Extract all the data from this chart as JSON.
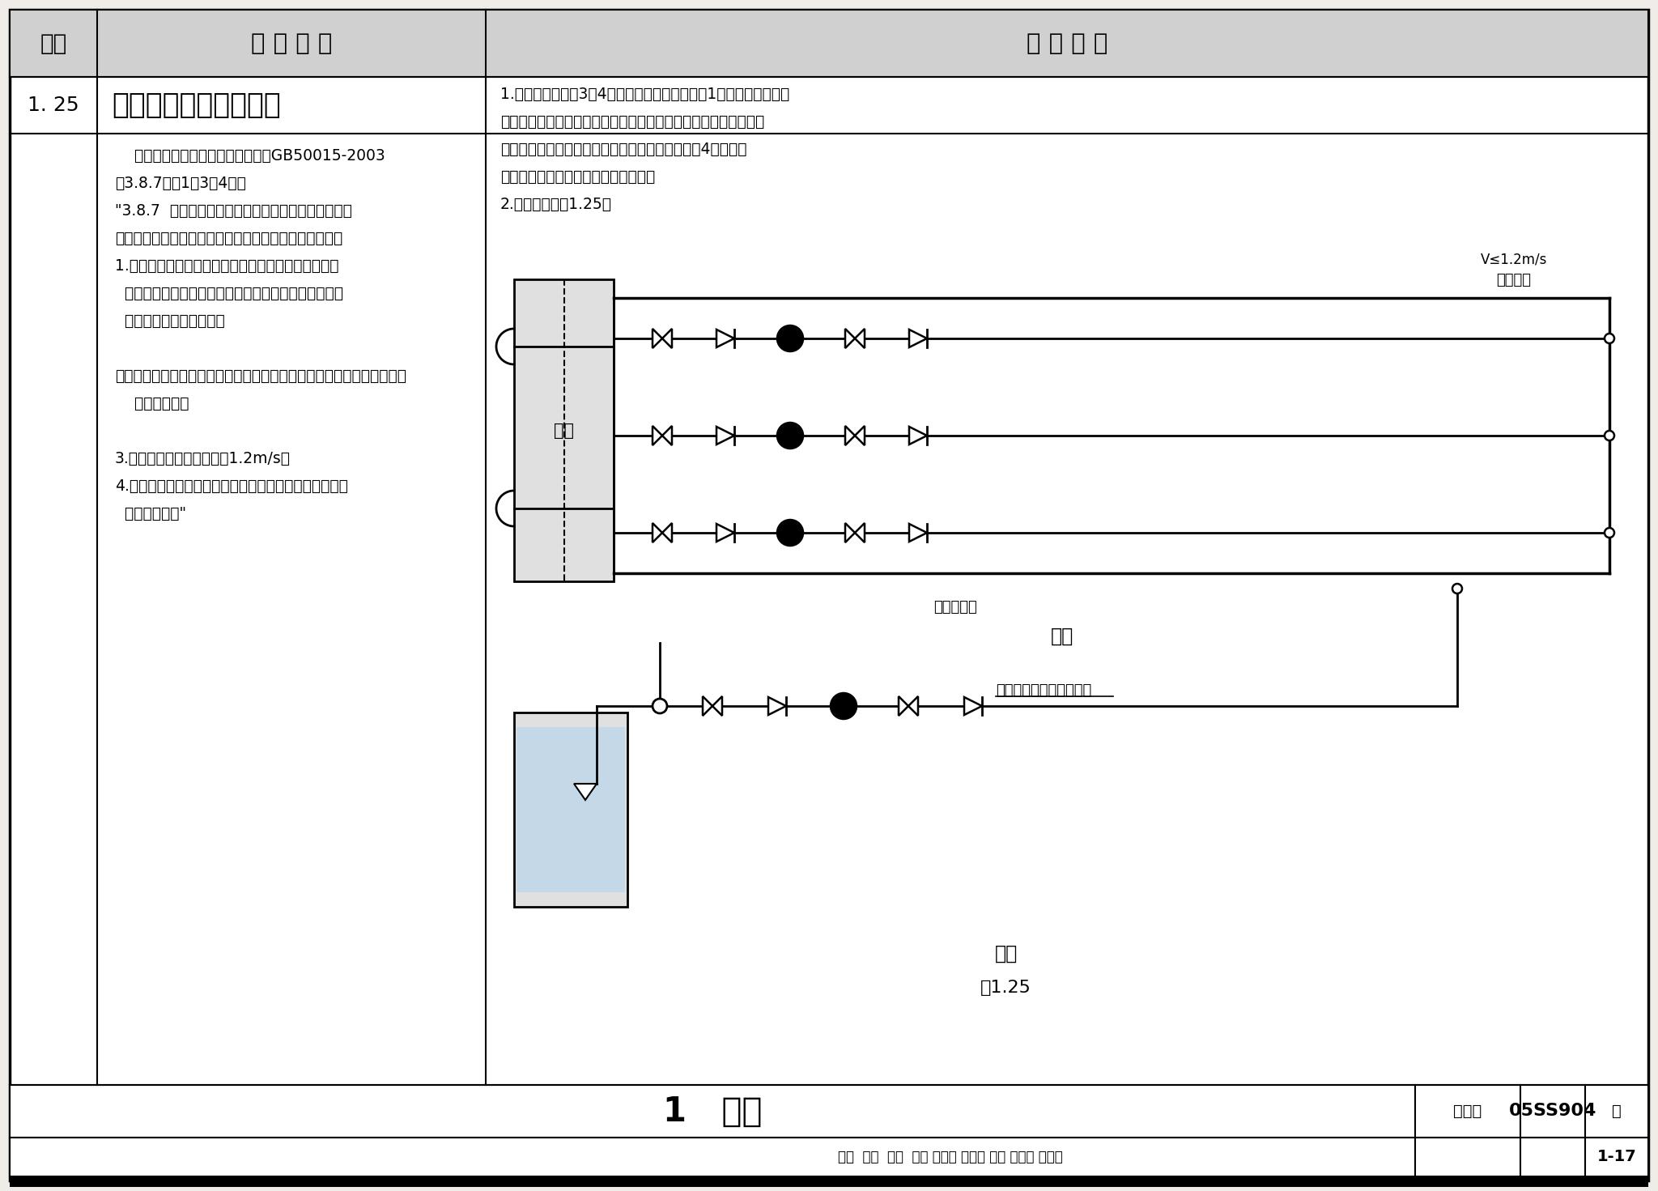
{
  "bg_color": "#f0ede8",
  "border_color": "#000000",
  "header_bg": "#d0d0d0",
  "col1_header": "序号",
  "col2_header": "常 见 问 题",
  "col3_header": "改 进 措 施",
  "row_num": "1. 25",
  "row_title": "水泵吸水总管设计不当",
  "left_text": [
    "    违反了《建筑给水排水设计规范》GB50015-2003",
    "第3.8.7条第1、3、4款。",
    "\"3.8.7  当每台水泵单独从水池吸水有困难时，可采用",
    "单独从吸水总管上自灌吸水，吸水总管应符合下列规定：",
    "1.吸水总管伸入水池的引水管不宜少于两条，当一条引",
    "  水管发生故障时，其余引水管应能通过全部设计流量。",
    "  每条引水管上应设阀门。",
    "",
    "注：水池有独立的两个及以上的分格，每格有一条引水管，可视为有两条",
    "    以上引水管。",
    "",
    "3.吸水总管内的流速应小于1.2m/s。",
    "4.水泵吸水管与吸水总管的连接，应采用管顶平接，或高",
    "  出管顶连接。\""
  ],
  "right_text_top": [
    "1.问题常发生在第3、4两款：由于设计流量未按1款规定，使吸水总",
    "管管径设计小了，而流速过大，这样会引起水泵吸水时互相干扰。",
    "吸水总管一般大于每台水泵的吸水管，如果不采取4款要求的",
    "连接方式，会使吸水总管内积聚空气。",
    "2.改进措施见图1.25。"
  ],
  "footer_left": "1   给水",
  "footer_code": "05SS904",
  "footer_label": "图集号",
  "footer_page_label": "页",
  "footer_page": "1-17",
  "signature_row": "审核  贾茗  要茗  校对 宿秀明 信言心 设计 孙绍履 孙绍院",
  "plan_label": "平面",
  "section_label": "剖面",
  "fig_label": "图1.25",
  "label_xsz": "吸水总管",
  "label_v": "V≤1.2m/s",
  "label_sc": "水池",
  "label_pump_pipe": "水泵吸水管",
  "label_connect": "管顶平接或高出管顶连接"
}
